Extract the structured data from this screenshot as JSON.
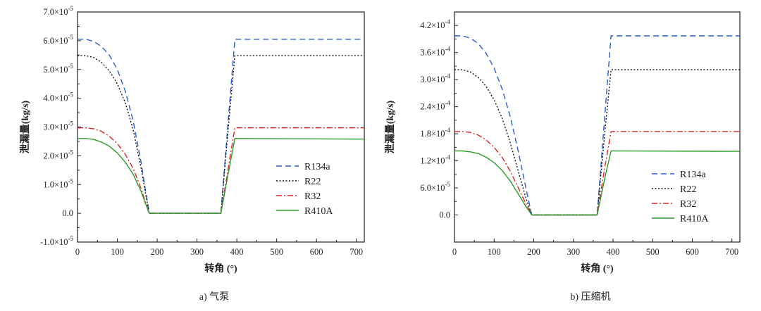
{
  "colors": {
    "R134a": "#2a5bd7",
    "R22": "#111111",
    "R32": "#e02424",
    "R410A": "#2e9b2e",
    "axis": "#222222"
  },
  "chart_data": [
    {
      "type": "line",
      "caption": "a) 气泵",
      "xlabel": "转角 (°)",
      "ylabel": "泄漏量(kg/s)",
      "xlim": [
        0,
        720
      ],
      "ylim": [
        -1e-05,
        7e-05
      ],
      "xticks": [
        0,
        100,
        200,
        300,
        400,
        500,
        600,
        700
      ],
      "xtick_labels": [
        "0",
        "100",
        "200",
        "300",
        "400",
        "500",
        "600",
        "700"
      ],
      "yticks": [
        -1e-05,
        0,
        1e-05,
        2e-05,
        3e-05,
        4e-05,
        5e-05,
        6e-05,
        7e-05
      ],
      "ytick_labels": [
        {
          "mant": "-1.0×10",
          "exp": "-5"
        },
        {
          "mant": "0.0",
          "exp": ""
        },
        {
          "mant": "1.0×10",
          "exp": "-5"
        },
        {
          "mant": "2.0×10",
          "exp": "-5"
        },
        {
          "mant": "3.0×10",
          "exp": "-5"
        },
        {
          "mant": "4.0×10",
          "exp": "-5"
        },
        {
          "mant": "5.0×10",
          "exp": "-5"
        },
        {
          "mant": "6.0×10",
          "exp": "-5"
        },
        {
          "mant": "7.0×10",
          "exp": "-5"
        }
      ],
      "legend_position": "center-right",
      "series": [
        {
          "name": "R134a",
          "style": "dashed",
          "x": [
            0,
            20,
            40,
            60,
            80,
            100,
            120,
            140,
            160,
            170,
            180,
            360,
            380,
            395,
            720
          ],
          "y": [
            6.05e-05,
            6.05e-05,
            5.98e-05,
            5.8e-05,
            5.5e-05,
            5e-05,
            4.25e-05,
            3.2e-05,
            1.75e-05,
            8.5e-06,
            0,
            0,
            3.5e-05,
            6.05e-05,
            6.05e-05
          ]
        },
        {
          "name": "R22",
          "style": "dotted",
          "x": [
            0,
            20,
            40,
            60,
            80,
            100,
            120,
            140,
            160,
            170,
            180,
            360,
            380,
            395,
            720
          ],
          "y": [
            5.48e-05,
            5.48e-05,
            5.42e-05,
            5.25e-05,
            4.95e-05,
            4.5e-05,
            3.85e-05,
            2.9e-05,
            1.55e-05,
            7.5e-06,
            0,
            0,
            3.2e-05,
            5.48e-05,
            5.48e-05
          ]
        },
        {
          "name": "R32",
          "style": "dashdot",
          "x": [
            0,
            20,
            40,
            60,
            80,
            100,
            120,
            140,
            160,
            170,
            180,
            360,
            380,
            395,
            720
          ],
          "y": [
            2.97e-05,
            2.97e-05,
            2.94e-05,
            2.85e-05,
            2.68e-05,
            2.42e-05,
            2.05e-05,
            1.55e-05,
            8.5e-06,
            4e-06,
            0,
            0,
            1.7e-05,
            2.97e-05,
            2.97e-05
          ]
        },
        {
          "name": "R410A",
          "style": "solid",
          "x": [
            0,
            20,
            40,
            60,
            80,
            100,
            120,
            140,
            160,
            170,
            180,
            360,
            380,
            395,
            720
          ],
          "y": [
            2.6e-05,
            2.6e-05,
            2.57e-05,
            2.48e-05,
            2.33e-05,
            2.1e-05,
            1.78e-05,
            1.35e-05,
            7.5e-06,
            3.6e-06,
            0,
            0,
            1.5e-05,
            2.6e-05,
            2.58e-05
          ]
        }
      ]
    },
    {
      "type": "line",
      "caption": "b) 压缩机",
      "xlabel": "转角 (°)",
      "ylabel": "泄漏量(kg/s)",
      "xlim": [
        0,
        720
      ],
      "ylim": [
        -6e-05,
        0.00045
      ],
      "xticks": [
        0,
        100,
        200,
        300,
        400,
        500,
        600,
        700
      ],
      "xtick_labels": [
        "0",
        "100",
        "200",
        "300",
        "400",
        "500",
        "600",
        "700"
      ],
      "yticks": [
        0,
        6e-05,
        0.00012,
        0.00018,
        0.00024,
        0.0003,
        0.00036,
        0.00042
      ],
      "ytick_labels": [
        {
          "mant": "0.0",
          "exp": ""
        },
        {
          "mant": "6.0×10",
          "exp": "-5"
        },
        {
          "mant": "1.2×10",
          "exp": "-4"
        },
        {
          "mant": "1.8×10",
          "exp": "-4"
        },
        {
          "mant": "2.4×10",
          "exp": "-4"
        },
        {
          "mant": "3.0×10",
          "exp": "-4"
        },
        {
          "mant": "3.6×10",
          "exp": "-4"
        },
        {
          "mant": "4.2×10",
          "exp": "-4"
        }
      ],
      "legend_position": "center-right",
      "series": [
        {
          "name": "R134a",
          "style": "dashed",
          "x": [
            0,
            20,
            40,
            60,
            80,
            100,
            120,
            140,
            160,
            180,
            195,
            360,
            380,
            395,
            720
          ],
          "y": [
            0.000397,
            0.000397,
            0.000392,
            0.00038,
            0.000358,
            0.000325,
            0.00028,
            0.00022,
            0.000145,
            6e-05,
            0,
            0,
            0.00023,
            0.000397,
            0.000397
          ]
        },
        {
          "name": "R22",
          "style": "dotted",
          "x": [
            0,
            20,
            40,
            60,
            80,
            100,
            120,
            140,
            160,
            180,
            195,
            360,
            380,
            395,
            720
          ],
          "y": [
            0.000322,
            0.000322,
            0.000317,
            0.000305,
            0.000285,
            0.000255,
            0.000215,
            0.000162,
            0.0001,
            3.8e-05,
            0,
            0,
            0.00019,
            0.000322,
            0.000322
          ]
        },
        {
          "name": "R32",
          "style": "dashdot",
          "x": [
            0,
            20,
            40,
            60,
            80,
            100,
            120,
            140,
            160,
            180,
            195,
            360,
            380,
            395,
            720
          ],
          "y": [
            0.000185,
            0.000185,
            0.000183,
            0.000177,
            0.000166,
            0.00015,
            0.000128,
            9.8e-05,
            6.2e-05,
            2.5e-05,
            0,
            0,
            0.00011,
            0.000185,
            0.000185
          ]
        },
        {
          "name": "R410A",
          "style": "solid",
          "x": [
            0,
            20,
            40,
            60,
            80,
            100,
            120,
            140,
            160,
            180,
            195,
            360,
            380,
            395,
            720
          ],
          "y": [
            0.000142,
            0.000142,
            0.00014,
            0.000136,
            0.000128,
            0.000116,
            9.9e-05,
            7.6e-05,
            4.8e-05,
            1.9e-05,
            0,
            0,
            8.5e-05,
            0.000142,
            0.000141
          ]
        }
      ]
    }
  ]
}
